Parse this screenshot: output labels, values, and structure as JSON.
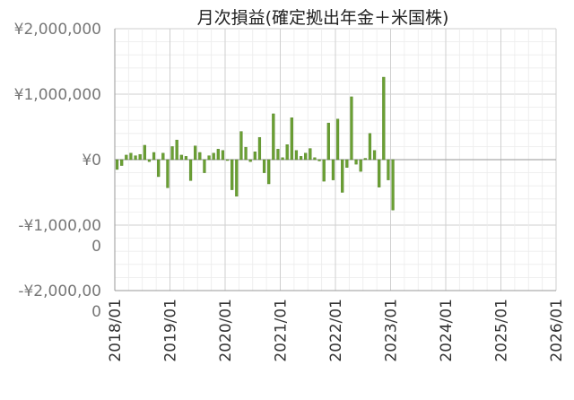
{
  "chart_data": {
    "type": "bar",
    "title": "月次損益(確定拠出年金＋米国株)",
    "xlabel": "",
    "ylabel": "",
    "ylim": [
      -2000000,
      2000000
    ],
    "xlim": [
      "2018/01",
      "2026/01"
    ],
    "grid": true,
    "legend": "none",
    "bar_color": "#6aa033",
    "bar_edge_color": "#4f7d22",
    "y_ticks": [
      {
        "value": 2000000,
        "label": "¥2,000,000"
      },
      {
        "value": 1000000,
        "label": "¥1,000,000"
      },
      {
        "value": 0,
        "label": "¥0"
      },
      {
        "value": -1000000,
        "label": "-¥1,000,000"
      },
      {
        "value": -2000000,
        "label": "-¥2,000,000"
      }
    ],
    "x_ticks": [
      "2018/01",
      "2019/01",
      "2020/01",
      "2021/01",
      "2022/01",
      "2023/01",
      "2024/01",
      "2025/01",
      "2026/01"
    ],
    "x": [
      "2018/01",
      "2018/02",
      "2018/03",
      "2018/04",
      "2018/05",
      "2018/06",
      "2018/07",
      "2018/08",
      "2018/09",
      "2018/10",
      "2018/11",
      "2018/12",
      "2019/01",
      "2019/02",
      "2019/03",
      "2019/04",
      "2019/05",
      "2019/06",
      "2019/07",
      "2019/08",
      "2019/09",
      "2019/10",
      "2019/11",
      "2019/12",
      "2020/01",
      "2020/02",
      "2020/03",
      "2020/04",
      "2020/05",
      "2020/06",
      "2020/07",
      "2020/08",
      "2020/09",
      "2020/10",
      "2020/11",
      "2020/12",
      "2021/01",
      "2021/02",
      "2021/03",
      "2021/04",
      "2021/05",
      "2021/06",
      "2021/07",
      "2021/08",
      "2021/09",
      "2021/10",
      "2021/11",
      "2021/12",
      "2022/01",
      "2022/02",
      "2022/03",
      "2022/04",
      "2022/05",
      "2022/06",
      "2022/07",
      "2022/08",
      "2022/09",
      "2022/10",
      "2022/11",
      "2022/12",
      "2023/01"
    ],
    "values": [
      -150000,
      -90000,
      70000,
      100000,
      60000,
      80000,
      220000,
      -30000,
      110000,
      -260000,
      100000,
      -430000,
      200000,
      300000,
      70000,
      50000,
      -320000,
      210000,
      110000,
      -200000,
      60000,
      100000,
      160000,
      140000,
      -10000,
      -460000,
      -560000,
      430000,
      190000,
      -30000,
      120000,
      340000,
      -200000,
      -370000,
      700000,
      160000,
      30000,
      230000,
      640000,
      140000,
      50000,
      100000,
      170000,
      30000,
      -20000,
      -330000,
      560000,
      -310000,
      620000,
      -500000,
      -120000,
      960000,
      -70000,
      -180000,
      20000,
      400000,
      140000,
      -420000,
      1260000,
      -310000,
      -770000
    ]
  }
}
